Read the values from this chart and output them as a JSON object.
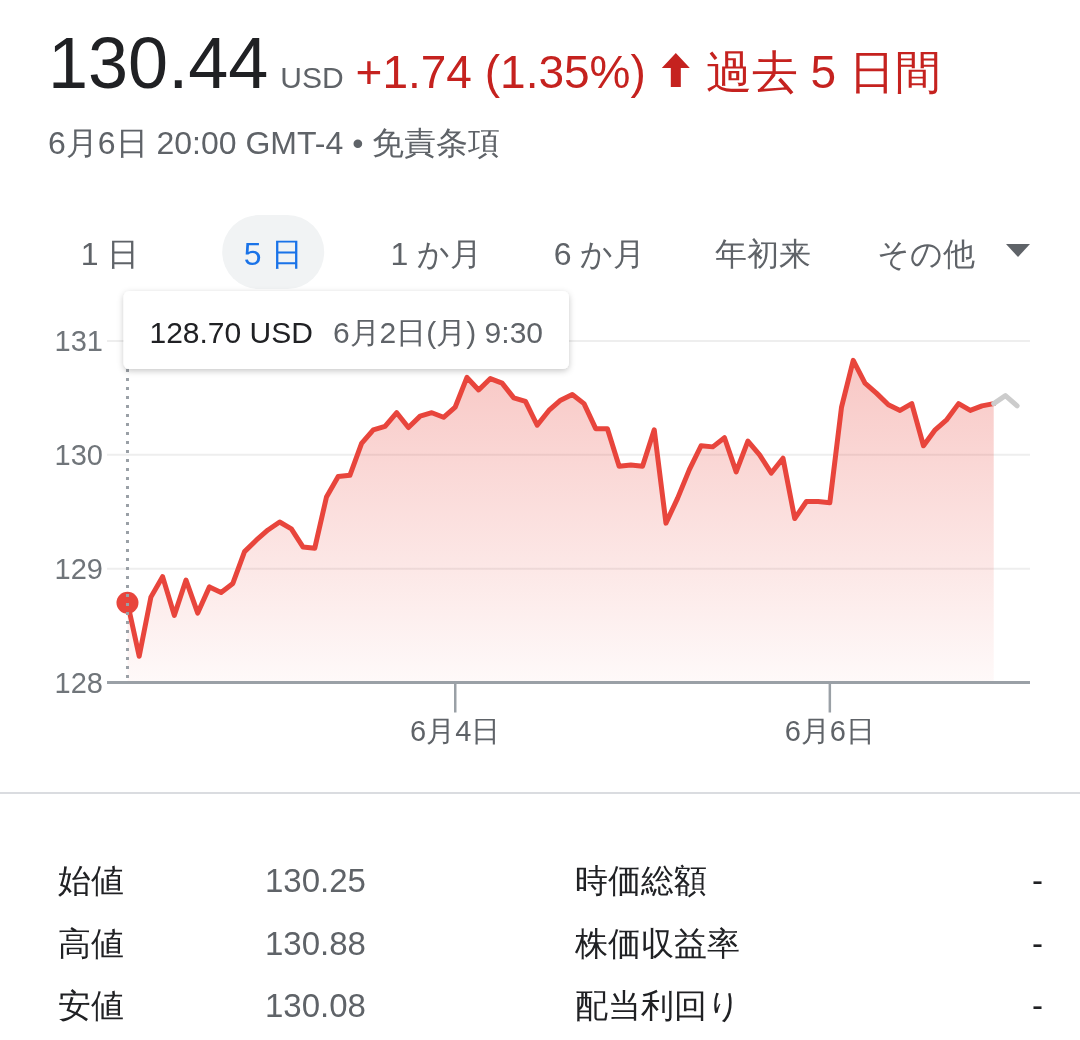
{
  "chart_data": [
    {
      "type": "area",
      "title": "130.44",
      "subtitle": "6月6日 20:00 GMT-4 • 免責条項",
      "annotations": [
        "USD",
        "+1.74 (1.35%)",
        "過去 5 日間",
        "1 日",
        "5 日",
        "1 か月",
        "6 か月",
        "年初来",
        "その他",
        "128.70 USD",
        "6月2日(月) 9:30"
      ],
      "categories": [
        null,
        null,
        null,
        null,
        null,
        null,
        null,
        null,
        null,
        null,
        null,
        null,
        null,
        null,
        null,
        null,
        null,
        null,
        null,
        null,
        null,
        null,
        null,
        null,
        null,
        null,
        null,
        null,
        "6月4日",
        null,
        null,
        null,
        null,
        null,
        null,
        null,
        null,
        null,
        null,
        null,
        null,
        null,
        null,
        null,
        null,
        null,
        null,
        null,
        null,
        null,
        null,
        null,
        null,
        null,
        null,
        null,
        null,
        null,
        null,
        null,
        "6月6日",
        null,
        null,
        null,
        null,
        null,
        null,
        null,
        null,
        null,
        null,
        null,
        null,
        null,
        null,
        null,
        null
      ],
      "series": [
        {
          "color": "#e8453c",
          "values": [
            128.7,
            128.23,
            128.75,
            128.93,
            128.59,
            128.9,
            128.61,
            128.84,
            128.79,
            128.87,
            129.15,
            129.25,
            129.34,
            129.41,
            129.35,
            129.19,
            129.18,
            129.63,
            129.81,
            129.82,
            130.1,
            130.22,
            130.25,
            130.37,
            130.24,
            130.34,
            130.37,
            130.33,
            130.42,
            130.68,
            130.57,
            130.67,
            130.63,
            130.5,
            130.47,
            130.26,
            130.39,
            130.48,
            130.53,
            130.45,
            130.23,
            130.23,
            129.9,
            129.91,
            129.9,
            130.22,
            129.4,
            129.62,
            129.87,
            130.08,
            130.07,
            130.15,
            129.85,
            130.12,
            130.0,
            129.84,
            129.97,
            129.44,
            129.59,
            129.59,
            129.58,
            130.42,
            130.83,
            130.63,
            130.54,
            130.44,
            130.39,
            130.45,
            130.08,
            130.22,
            130.31,
            130.45,
            130.39,
            130.43,
            130.45,
            null,
            null
          ]
        },
        {
          "type": "line",
          "color": "#cccccc",
          "values": [
            null,
            null,
            null,
            null,
            null,
            null,
            null,
            null,
            null,
            null,
            null,
            null,
            null,
            null,
            null,
            null,
            null,
            null,
            null,
            null,
            null,
            null,
            null,
            null,
            null,
            null,
            null,
            null,
            null,
            null,
            null,
            null,
            null,
            null,
            null,
            null,
            null,
            null,
            null,
            null,
            null,
            null,
            null,
            null,
            null,
            null,
            null,
            null,
            null,
            null,
            null,
            null,
            null,
            null,
            null,
            null,
            null,
            null,
            null,
            null,
            null,
            null,
            null,
            null,
            null,
            null,
            null,
            null,
            null,
            null,
            null,
            null,
            null,
            null,
            130.45,
            130.52,
            130.43
          ]
        },
        {
          "type": "scatter",
          "color": "#e8453c",
          "marker": "circle",
          "values": [
            128.7,
            null,
            null,
            null,
            null,
            null,
            null,
            null,
            null,
            null,
            null,
            null,
            null,
            null,
            null,
            null,
            null,
            null,
            null,
            null,
            null,
            null,
            null,
            null,
            null,
            null,
            null,
            null,
            null,
            null,
            null,
            null,
            null,
            null,
            null,
            null,
            null,
            null,
            null,
            null,
            null,
            null,
            null,
            null,
            null,
            null,
            null,
            null,
            null,
            null,
            null,
            null,
            null,
            null,
            null,
            null,
            null,
            null,
            null,
            null,
            null,
            null,
            null,
            null,
            null,
            null,
            null,
            null,
            null,
            null,
            null,
            null,
            null,
            null,
            null,
            null,
            null
          ]
        }
      ],
      "ylim": [
        128,
        131
      ],
      "yticks": [
        128,
        129,
        130,
        131
      ],
      "grid": "y"
    },
    {
      "type": "other",
      "annotations": [
        "始値",
        "130.25",
        "高値",
        "130.88",
        "安値",
        "130.08",
        "時価総額",
        "-",
        "株価収益率",
        "-",
        "配当利回り",
        "-"
      ]
    }
  ]
}
